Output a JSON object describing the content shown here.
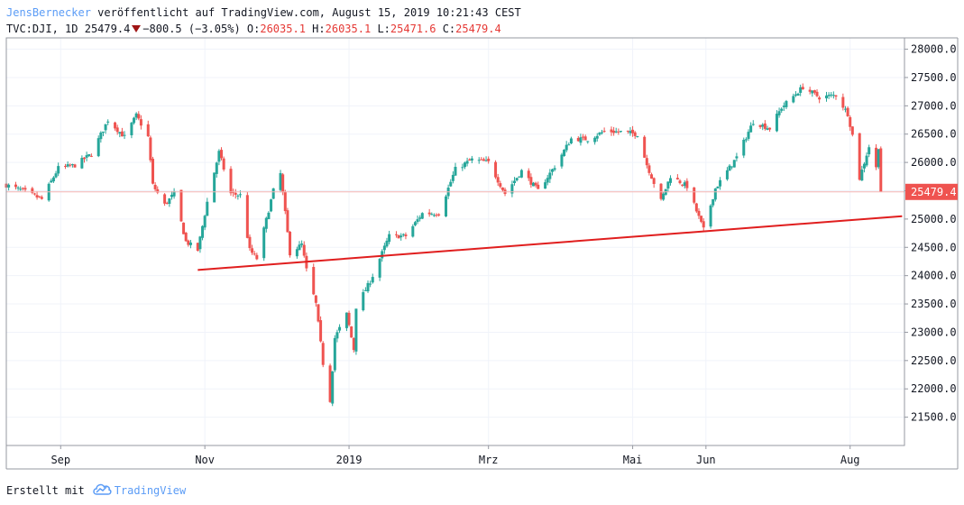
{
  "header": {
    "author": "JensBernecker",
    "published_text": "veröffentlicht auf TradingView.com, August 15, 2019 10:21:43 CEST",
    "symbol": "TVC:DJI, 1D",
    "last": "25479.4",
    "change": "−800.5 (−3.05%)",
    "o_label": "O:",
    "o_value": "26035.1",
    "h_label": "H:",
    "h_value": "26035.1",
    "l_label": "L:",
    "l_value": "25471.6",
    "c_label": "C:",
    "c_value": "25479.4"
  },
  "footer": {
    "created_with": "Erstellt mit",
    "brand": "TradingView",
    "logo_icon": "tradingview-cloud-icon"
  },
  "colors": {
    "up": "#26a69a",
    "down": "#ef5350",
    "trendline": "#e01e1e",
    "price_label_bg": "#ef5350",
    "grid": "#f0f3fa"
  },
  "chart_data": {
    "type": "candlestick",
    "symbol": "TVC:DJI",
    "interval": "1D",
    "ylim": [
      21000,
      28200
    ],
    "y_ticks": [
      21500,
      22000,
      22500,
      23000,
      23500,
      24000,
      24500,
      25000,
      25500,
      26000,
      26500,
      27000,
      27500,
      28000
    ],
    "y_tick_labels": [
      "21500.0",
      "22000.0",
      "22500.0",
      "23000.0",
      "23500.0",
      "24000.0",
      "24500.0",
      "25000.0",
      "25500.0",
      "26000.0",
      "26500.0",
      "27000.0",
      "27500.0",
      "28000.0"
    ],
    "x_range": [
      "2018-08-09",
      "2019-08-24"
    ],
    "x_ticks": [
      {
        "label": "Sep",
        "date": "2018-09-01"
      },
      {
        "label": "Nov",
        "date": "2018-11-01"
      },
      {
        "label": "2019",
        "date": "2019-01-01"
      },
      {
        "label": "Mrz",
        "date": "2019-03-01"
      },
      {
        "label": "Mai",
        "date": "2019-05-01"
      },
      {
        "label": "Jun",
        "date": "2019-06-01"
      },
      {
        "label": "Aug",
        "date": "2019-08-01"
      }
    ],
    "last_price_label": "25479.4",
    "last_price": 25479.4,
    "grid": true,
    "trendline": {
      "start": {
        "date": "2018-10-29",
        "price": 24100
      },
      "end": {
        "date": "2019-08-23",
        "price": 25050
      }
    },
    "close_path": [
      [
        "2018-08-09",
        25600
      ],
      [
        "2018-08-16",
        25500
      ],
      [
        "2018-08-24",
        25350
      ],
      [
        "2018-08-31",
        25900
      ],
      [
        "2018-09-07",
        25950
      ],
      [
        "2018-09-14",
        26150
      ],
      [
        "2018-09-21",
        26750
      ],
      [
        "2018-09-28",
        26450
      ],
      [
        "2018-10-03",
        26830
      ],
      [
        "2018-10-08",
        26450
      ],
      [
        "2018-10-10",
        25600
      ],
      [
        "2018-10-15",
        25250
      ],
      [
        "2018-10-19",
        25450
      ],
      [
        "2018-10-24",
        24600
      ],
      [
        "2018-10-29",
        24450
      ],
      [
        "2018-11-02",
        25300
      ],
      [
        "2018-11-07",
        26180
      ],
      [
        "2018-11-12",
        25450
      ],
      [
        "2018-11-16",
        25420
      ],
      [
        "2018-11-20",
        24450
      ],
      [
        "2018-11-23",
        24300
      ],
      [
        "2018-11-30",
        25500
      ],
      [
        "2018-12-03",
        25800
      ],
      [
        "2018-12-07",
        24400
      ],
      [
        "2018-12-12",
        24550
      ],
      [
        "2018-12-14",
        24100
      ],
      [
        "2018-12-18",
        23500
      ],
      [
        "2018-12-21",
        22450
      ],
      [
        "2018-12-24",
        21800
      ],
      [
        "2018-12-26",
        22900
      ],
      [
        "2018-12-31",
        23320
      ],
      [
        "2019-01-03",
        22700
      ],
      [
        "2019-01-04",
        23450
      ],
      [
        "2019-01-10",
        23900
      ],
      [
        "2019-01-18",
        24700
      ],
      [
        "2019-01-25",
        24700
      ],
      [
        "2019-02-01",
        25100
      ],
      [
        "2019-02-08",
        25100
      ],
      [
        "2019-02-15",
        25880
      ],
      [
        "2019-02-22",
        26050
      ],
      [
        "2019-03-01",
        26000
      ],
      [
        "2019-03-08",
        25450
      ],
      [
        "2019-03-15",
        25850
      ],
      [
        "2019-03-22",
        25500
      ],
      [
        "2019-03-29",
        25930
      ],
      [
        "2019-04-05",
        26420
      ],
      [
        "2019-04-12",
        26410
      ],
      [
        "2019-04-19",
        26550
      ],
      [
        "2019-04-26",
        26540
      ],
      [
        "2019-05-03",
        26500
      ],
      [
        "2019-05-07",
        25960
      ],
      [
        "2019-05-13",
        25320
      ],
      [
        "2019-05-17",
        25760
      ],
      [
        "2019-05-24",
        25580
      ],
      [
        "2019-05-31",
        24810
      ],
      [
        "2019-06-05",
        25540
      ],
      [
        "2019-06-14",
        26090
      ],
      [
        "2019-06-21",
        26720
      ],
      [
        "2019-06-28",
        26600
      ],
      [
        "2019-07-03",
        26970
      ],
      [
        "2019-07-12",
        27330
      ],
      [
        "2019-07-19",
        27150
      ],
      [
        "2019-07-26",
        27190
      ],
      [
        "2019-07-31",
        26860
      ],
      [
        "2019-08-02",
        26480
      ],
      [
        "2019-08-05",
        25720
      ],
      [
        "2019-08-09",
        26280
      ],
      [
        "2019-08-12",
        25900
      ],
      [
        "2019-08-13",
        26280
      ],
      [
        "2019-08-14",
        25479.4
      ]
    ]
  }
}
